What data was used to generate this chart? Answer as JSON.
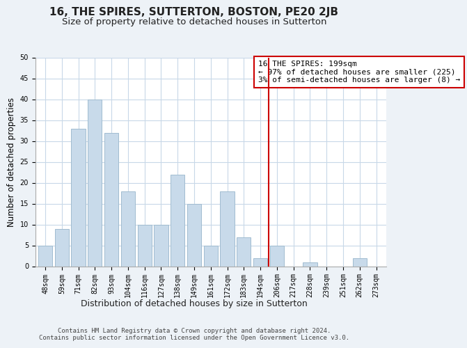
{
  "title": "16, THE SPIRES, SUTTERTON, BOSTON, PE20 2JB",
  "subtitle": "Size of property relative to detached houses in Sutterton",
  "xlabel": "Distribution of detached houses by size in Sutterton",
  "ylabel": "Number of detached properties",
  "bar_labels": [
    "48sqm",
    "59sqm",
    "71sqm",
    "82sqm",
    "93sqm",
    "104sqm",
    "116sqm",
    "127sqm",
    "138sqm",
    "149sqm",
    "161sqm",
    "172sqm",
    "183sqm",
    "194sqm",
    "206sqm",
    "217sqm",
    "228sqm",
    "239sqm",
    "251sqm",
    "262sqm",
    "273sqm"
  ],
  "bar_values": [
    5,
    9,
    33,
    40,
    32,
    18,
    10,
    10,
    22,
    15,
    5,
    18,
    7,
    2,
    5,
    0,
    1,
    0,
    0,
    2,
    0
  ],
  "bar_color": "#c8daea",
  "bar_edge_color": "#a0bcd0",
  "vline_x_index": 14.0,
  "vline_color": "#cc0000",
  "annotation_text": "16 THE SPIRES: 199sqm\n← 97% of detached houses are smaller (225)\n3% of semi-detached houses are larger (8) →",
  "annotation_box_color": "#ffffff",
  "annotation_box_edge": "#cc0000",
  "ylim": [
    0,
    50
  ],
  "yticks": [
    0,
    5,
    10,
    15,
    20,
    25,
    30,
    35,
    40,
    45,
    50
  ],
  "footnote": "Contains HM Land Registry data © Crown copyright and database right 2024.\nContains public sector information licensed under the Open Government Licence v3.0.",
  "bg_color": "#edf2f7",
  "plot_bg_color": "#ffffff",
  "grid_color": "#c8d8e8",
  "title_fontsize": 11,
  "subtitle_fontsize": 9.5,
  "xlabel_fontsize": 9,
  "ylabel_fontsize": 8.5,
  "tick_fontsize": 7,
  "footnote_fontsize": 6.5,
  "annotation_fontsize": 8
}
